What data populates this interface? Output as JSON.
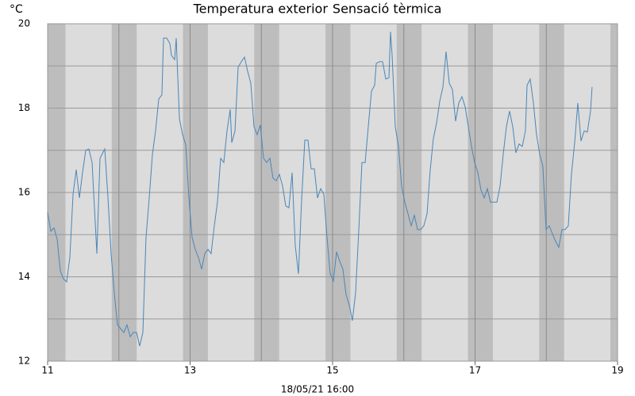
{
  "chart_data": {
    "type": "line",
    "y_label": "°C",
    "timestamp": "18/05/21 16:00",
    "series": [
      {
        "name": "Temperatura exterior",
        "color": "#4a86b8",
        "x": [
          11.0,
          11.045,
          11.089,
          11.134,
          11.178,
          11.223,
          11.267,
          11.312,
          11.357,
          11.401,
          11.446,
          11.49,
          11.535,
          11.579,
          11.624,
          11.691,
          11.735,
          11.78,
          11.802,
          11.847,
          11.891,
          11.936,
          11.98,
          12.025,
          12.07,
          12.114,
          12.159,
          12.203,
          12.248,
          12.292,
          12.337,
          12.381,
          12.426,
          12.471,
          12.515,
          12.56,
          12.604,
          12.627,
          12.671,
          12.716,
          12.738,
          12.783,
          12.805,
          12.85,
          12.894,
          12.939,
          12.983,
          13.028,
          13.072,
          13.117,
          13.162,
          13.206,
          13.251,
          13.295,
          13.34,
          13.384,
          13.429,
          13.473,
          13.518,
          13.563,
          13.585,
          13.63,
          13.674,
          13.719,
          13.763,
          13.808,
          13.852,
          13.897,
          13.941,
          13.986,
          14.031,
          14.075,
          14.12,
          14.164,
          14.209,
          14.253,
          14.298,
          14.343,
          14.387,
          14.432,
          14.476,
          14.521,
          14.565,
          14.61,
          14.654,
          14.699,
          14.744,
          14.788,
          14.833,
          14.877,
          14.922,
          14.966,
          15.011,
          15.056,
          15.1,
          15.145,
          15.189,
          15.234,
          15.278,
          15.323,
          15.368,
          15.412,
          15.457,
          15.501,
          15.546,
          15.59,
          15.613,
          15.658,
          15.702,
          15.747,
          15.791,
          15.813,
          15.836,
          15.88,
          15.925,
          15.969,
          16.014,
          16.059,
          16.103,
          16.148,
          16.192,
          16.237,
          16.281,
          16.326,
          16.37,
          16.415,
          16.46,
          16.504,
          16.549,
          16.593,
          16.638,
          16.682,
          16.727,
          16.771,
          16.816,
          16.861,
          16.905,
          16.95,
          16.994,
          17.039,
          17.083,
          17.128,
          17.172,
          17.217,
          17.262,
          17.306,
          17.351,
          17.395,
          17.44,
          17.484,
          17.529,
          17.573,
          17.618,
          17.663,
          17.707,
          17.73,
          17.774,
          17.819,
          17.863,
          17.908,
          17.952,
          17.997,
          18.041,
          18.086,
          18.131,
          18.175,
          18.22,
          18.264,
          18.309,
          18.353,
          18.398,
          18.442,
          18.487,
          18.532,
          18.576,
          18.621,
          18.643
        ],
        "values": [
          15.53,
          15.08,
          15.16,
          14.89,
          14.14,
          13.95,
          13.88,
          14.46,
          15.96,
          16.54,
          15.87,
          16.47,
          17.0,
          17.03,
          16.71,
          14.55,
          16.81,
          16.96,
          17.03,
          15.87,
          14.55,
          13.62,
          12.86,
          12.77,
          12.68,
          12.86,
          12.58,
          12.68,
          12.68,
          12.36,
          12.68,
          14.93,
          15.87,
          16.9,
          17.46,
          18.22,
          18.31,
          19.66,
          19.66,
          19.53,
          19.25,
          19.15,
          19.66,
          17.75,
          17.37,
          17.13,
          15.87,
          14.93,
          14.65,
          14.46,
          14.18,
          14.55,
          14.65,
          14.55,
          15.21,
          15.77,
          16.81,
          16.71,
          17.46,
          17.97,
          17.18,
          17.46,
          18.97,
          19.1,
          19.21,
          18.87,
          18.59,
          17.56,
          17.37,
          17.6,
          16.81,
          16.71,
          16.81,
          16.34,
          16.28,
          16.43,
          16.15,
          15.68,
          15.64,
          16.47,
          14.74,
          14.07,
          15.81,
          17.24,
          17.24,
          16.56,
          16.56,
          15.87,
          16.09,
          15.96,
          14.93,
          14.08,
          13.9,
          14.59,
          14.37,
          14.18,
          13.58,
          13.33,
          12.96,
          13.62,
          15.12,
          16.71,
          16.71,
          17.56,
          18.4,
          18.54,
          19.06,
          19.1,
          19.1,
          18.69,
          18.72,
          19.81,
          19.25,
          17.56,
          17.09,
          16.15,
          15.77,
          15.49,
          15.21,
          15.46,
          15.12,
          15.12,
          15.21,
          15.49,
          16.53,
          17.28,
          17.65,
          18.16,
          18.5,
          19.34,
          18.59,
          18.44,
          17.69,
          18.12,
          18.27,
          18.03,
          17.56,
          17.09,
          16.71,
          16.47,
          16.06,
          15.87,
          16.09,
          15.77,
          15.77,
          15.77,
          16.15,
          16.9,
          17.56,
          17.93,
          17.56,
          16.94,
          17.15,
          17.09,
          17.46,
          18.54,
          18.69,
          18.12,
          17.37,
          16.9,
          16.62,
          15.12,
          15.21,
          15.02,
          14.84,
          14.7,
          15.12,
          15.12,
          15.21,
          16.43,
          17.18,
          18.12,
          17.22,
          17.46,
          17.43,
          17.93,
          18.5
        ]
      }
    ],
    "legend_extra": [
      {
        "name": "Sensació tèrmica",
        "color": "#b94a4a"
      }
    ],
    "xlim": [
      11,
      19
    ],
    "xticks": [
      11,
      13,
      15,
      17,
      19
    ],
    "xminor": [
      12,
      14,
      16,
      18
    ],
    "ylim": [
      12,
      20
    ],
    "yticks": [
      12,
      14,
      16,
      18,
      20
    ],
    "yminor": [
      13,
      15,
      17,
      19
    ],
    "grid": true
  }
}
